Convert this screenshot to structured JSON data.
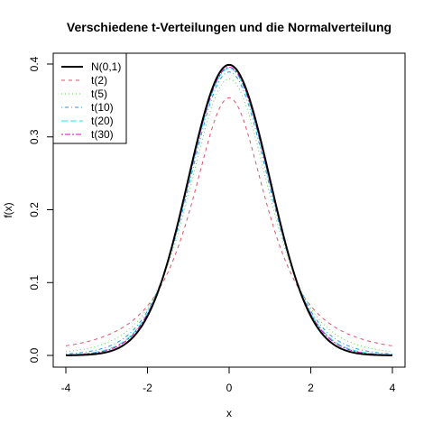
{
  "chart_data": {
    "type": "line",
    "title": "Verschiedene t-Verteilungen und die Normalverteilung",
    "xlabel": "x",
    "ylabel": "f(x)",
    "xlim": [
      -4,
      4
    ],
    "ylim": [
      0,
      0.4
    ],
    "x_ticks": [
      -4,
      -2,
      0,
      2,
      4
    ],
    "y_ticks": [
      0.0,
      0.1,
      0.2,
      0.3,
      0.4
    ],
    "x_tick_labels": [
      "-4",
      "-2",
      "0",
      "2",
      "4"
    ],
    "y_tick_labels": [
      "0.0",
      "0.1",
      "0.2",
      "0.3",
      "0.4"
    ],
    "legend_position": "top-left",
    "grid": false,
    "series": [
      {
        "name": "N(0,1)",
        "df": null,
        "color": "#000000",
        "dash": "solid"
      },
      {
        "name": "t(2)",
        "df": 2,
        "color": "#DF536B",
        "dash": "dashed"
      },
      {
        "name": "t(5)",
        "df": 5,
        "color": "#61D04F",
        "dash": "dotted"
      },
      {
        "name": "t(10)",
        "df": 10,
        "color": "#2297E6",
        "dash": "dotdash"
      },
      {
        "name": "t(20)",
        "df": 20,
        "color": "#28E2E5",
        "dash": "longdash"
      },
      {
        "name": "t(30)",
        "df": 30,
        "color": "#CD0BBC",
        "dash": "twodash"
      }
    ]
  }
}
